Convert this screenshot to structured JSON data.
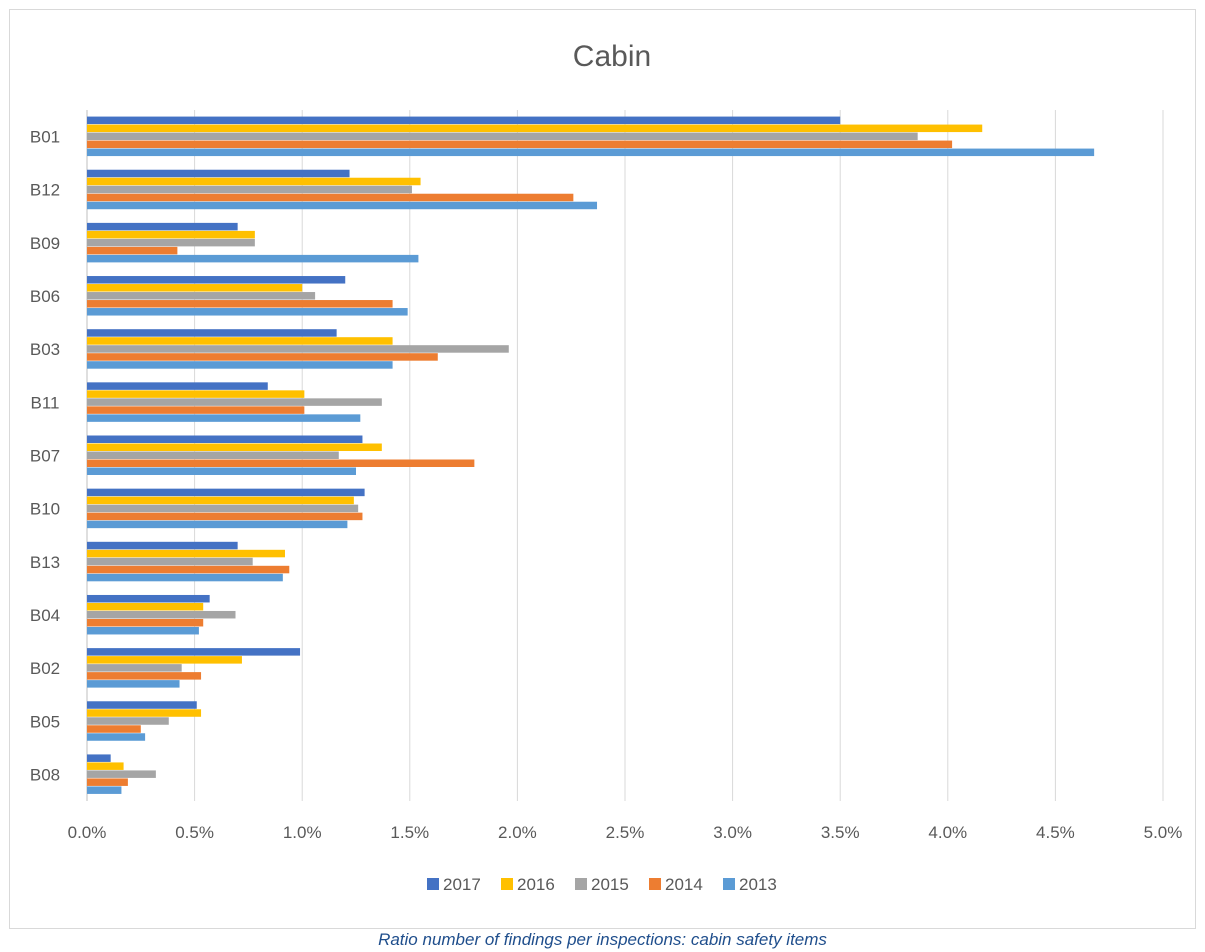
{
  "chart_data": {
    "type": "bar",
    "orientation": "horizontal",
    "title": "Cabin",
    "xlabel": "",
    "ylabel": "",
    "xlim": [
      0,
      0.05
    ],
    "x_ticks": [
      "0.0%",
      "0.5%",
      "1.0%",
      "1.5%",
      "2.0%",
      "2.5%",
      "3.0%",
      "3.5%",
      "4.0%",
      "4.5%",
      "5.0%"
    ],
    "grid": "vertical",
    "legend_position": "bottom",
    "categories": [
      "B01",
      "B12",
      "B09",
      "B06",
      "B03",
      "B11",
      "B07",
      "B10",
      "B13",
      "B04",
      "B02",
      "B05",
      "B08"
    ],
    "series": [
      {
        "name": "2017",
        "color": "#4472c4",
        "values": [
          0.035,
          0.0122,
          0.007,
          0.012,
          0.0116,
          0.0084,
          0.0128,
          0.0129,
          0.007,
          0.0057,
          0.0099,
          0.0051,
          0.0011
        ]
      },
      {
        "name": "2016",
        "color": "#ffc000",
        "values": [
          0.0416,
          0.0155,
          0.0078,
          0.01,
          0.0142,
          0.0101,
          0.0137,
          0.0124,
          0.0092,
          0.0054,
          0.0072,
          0.0053,
          0.0017
        ]
      },
      {
        "name": "2015",
        "color": "#a5a5a5",
        "values": [
          0.0386,
          0.0151,
          0.0078,
          0.0106,
          0.0196,
          0.0137,
          0.0117,
          0.0126,
          0.0077,
          0.0069,
          0.0044,
          0.0038,
          0.0032
        ]
      },
      {
        "name": "2014",
        "color": "#ed7d31",
        "values": [
          0.0402,
          0.0226,
          0.0042,
          0.0142,
          0.0163,
          0.0101,
          0.018,
          0.0128,
          0.0094,
          0.0054,
          0.0053,
          0.0025,
          0.0019
        ]
      },
      {
        "name": "2013",
        "color": "#5b9bd5",
        "values": [
          0.0468,
          0.0237,
          0.0154,
          0.0149,
          0.0142,
          0.0127,
          0.0125,
          0.0121,
          0.0091,
          0.0052,
          0.0043,
          0.0027,
          0.0016
        ]
      }
    ]
  },
  "caption": "Ratio number of findings per inspections: cabin safety items"
}
